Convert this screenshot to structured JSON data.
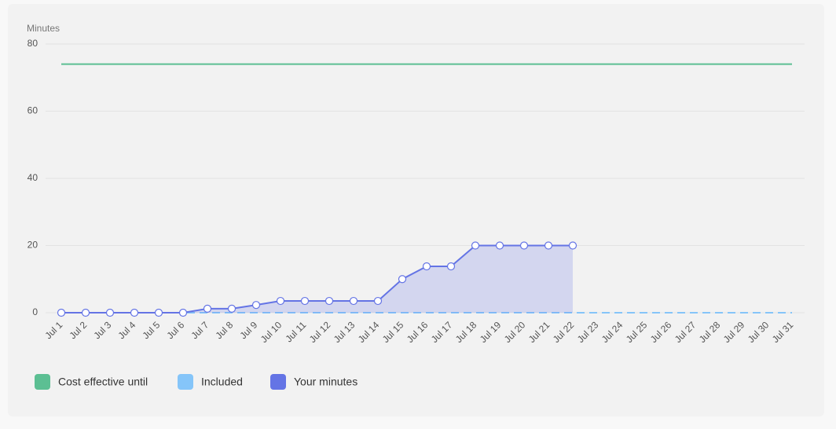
{
  "chart_data": {
    "type": "line",
    "y_label": "Minutes",
    "categories": [
      "Jul 1",
      "Jul 2",
      "Jul 3",
      "Jul 4",
      "Jul 5",
      "Jul 6",
      "Jul 7",
      "Jul 8",
      "Jul 9",
      "Jul 10",
      "Jul 11",
      "Jul 12",
      "Jul 13",
      "Jul 14",
      "Jul 15",
      "Jul 16",
      "Jul 17",
      "Jul 18",
      "Jul 19",
      "Jul 20",
      "Jul 21",
      "Jul 22",
      "Jul 23",
      "Jul 24",
      "Jul 25",
      "Jul 26",
      "Jul 27",
      "Jul 28",
      "Jul 29",
      "Jul 30",
      "Jul 31"
    ],
    "series": [
      {
        "name": "Cost effective until",
        "color": "#5cbf93",
        "values": [
          74,
          74,
          74,
          74,
          74,
          74,
          74,
          74,
          74,
          74,
          74,
          74,
          74,
          74,
          74,
          74,
          74,
          74,
          74,
          74,
          74,
          74,
          74,
          74,
          74,
          74,
          74,
          74,
          74,
          74,
          74
        ]
      },
      {
        "name": "Included",
        "color": "#85c5f9",
        "dashed": true,
        "values": [
          0,
          0,
          0,
          0,
          0,
          0,
          0,
          0,
          0,
          0,
          0,
          0,
          0,
          0,
          0,
          0,
          0,
          0,
          0,
          0,
          0,
          0,
          0,
          0,
          0,
          0,
          0,
          0,
          0,
          0,
          0
        ]
      },
      {
        "name": "Your minutes",
        "color": "#6474e5",
        "area": true,
        "markers": true,
        "values": [
          0,
          0,
          0,
          0,
          0,
          0,
          1.2,
          1.2,
          2.3,
          3.5,
          3.5,
          3.5,
          3.5,
          3.5,
          10,
          13.8,
          13.8,
          20,
          20,
          20,
          20,
          20,
          null,
          null,
          null,
          null,
          null,
          null,
          null,
          null,
          null
        ]
      }
    ],
    "ylim": [
      0,
      80
    ],
    "yticks": [
      0,
      20,
      40,
      60,
      80
    ],
    "grid": true,
    "legend": "bottom-left"
  }
}
